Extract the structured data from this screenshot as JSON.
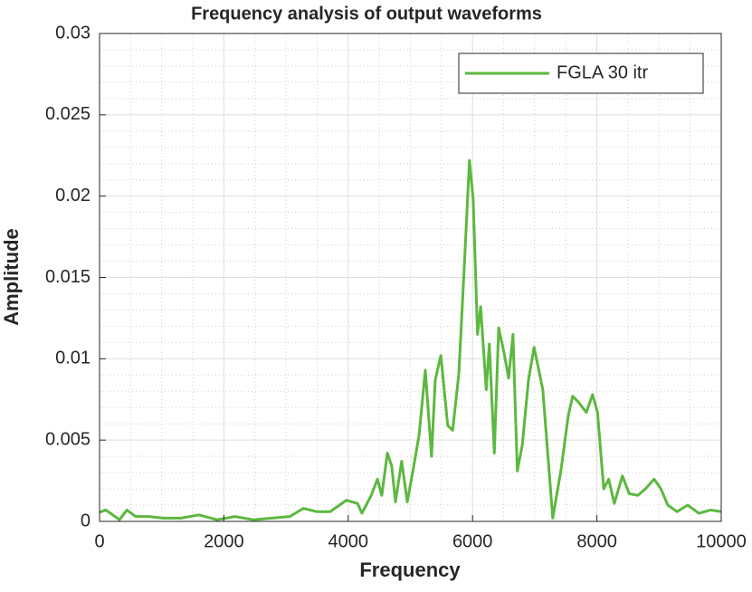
{
  "chart_data": {
    "type": "line",
    "title": "Frequency analysis of output waveforms",
    "x_label": "Frequency",
    "y_label": "Amplitude",
    "xlim": [
      0,
      10000
    ],
    "xticks": [
      0,
      2000,
      4000,
      6000,
      8000,
      10000
    ],
    "ylim": [
      0,
      0.03
    ],
    "yticks": [
      0,
      0.005,
      0.01,
      0.015,
      0.02,
      0.025,
      0.03
    ],
    "grid": true,
    "minor_grid": true,
    "legend": "northeast",
    "series": [
      {
        "name": "FGLA 30 itr",
        "color": "#5cb83f",
        "x": [
          0,
          100,
          175,
          250,
          320,
          440,
          580,
          800,
          1020,
          1310,
          1600,
          1890,
          2180,
          2470,
          2770,
          3060,
          3280,
          3490,
          3710,
          3970,
          4150,
          4220,
          4370,
          4470,
          4540,
          4630,
          4700,
          4760,
          4860,
          4950,
          5040,
          5140,
          5240,
          5340,
          5400,
          5490,
          5600,
          5680,
          5780,
          5870,
          5950,
          6010,
          6080,
          6130,
          6220,
          6270,
          6350,
          6420,
          6510,
          6580,
          6650,
          6720,
          6800,
          6900,
          6990,
          7130,
          7290,
          7420,
          7540,
          7610,
          7710,
          7830,
          7930,
          8010,
          8110,
          8190,
          8280,
          8410,
          8520,
          8660,
          8780,
          8920,
          9030,
          9140,
          9290,
          9460,
          9640,
          9830,
          10000
        ],
        "values": [
          0.00056,
          0.0007,
          0.0005,
          0.0003,
          0.0001,
          0.0007,
          0.0003,
          0.0003,
          0.0002,
          0.0002,
          0.0004,
          0.0001,
          0.0003,
          0.0001,
          0.0002,
          0.0003,
          0.0008,
          0.0006,
          0.0006,
          0.0013,
          0.0011,
          0.0005,
          0.0016,
          0.0026,
          0.0016,
          0.0042,
          0.0034,
          0.0012,
          0.0037,
          0.0012,
          0.0031,
          0.0053,
          0.0093,
          0.004,
          0.0087,
          0.0102,
          0.0059,
          0.0056,
          0.0091,
          0.0159,
          0.0222,
          0.0198,
          0.0115,
          0.0132,
          0.0081,
          0.0109,
          0.0042,
          0.0119,
          0.0103,
          0.0088,
          0.0115,
          0.0031,
          0.0047,
          0.0087,
          0.0107,
          0.0081,
          0.0002,
          0.0031,
          0.0065,
          0.0077,
          0.0073,
          0.0067,
          0.0078,
          0.0067,
          0.002,
          0.0026,
          0.0011,
          0.0028,
          0.0017,
          0.0016,
          0.002,
          0.0026,
          0.002,
          0.001,
          0.0006,
          0.001,
          0.0005,
          0.0007,
          0.0006
        ]
      }
    ]
  }
}
